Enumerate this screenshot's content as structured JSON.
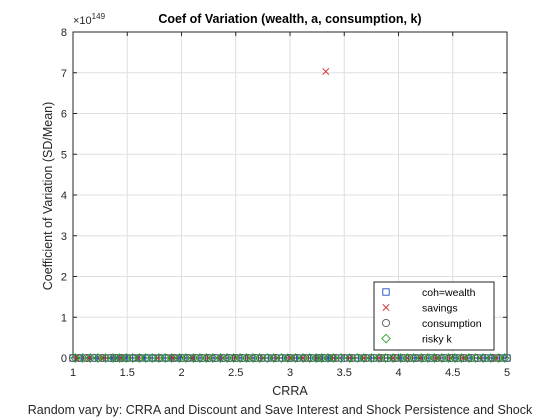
{
  "chart_data": {
    "type": "scatter",
    "title": "Coef of Variation (wealth, a, consumption, k)",
    "xlabel": "CRRA",
    "ylabel": "Coefficient of Variation (SD/Mean)",
    "caption": "Random vary by: CRRA and Discount and Save Interest and Shock Persistence and Shock",
    "xlim": [
      1,
      5
    ],
    "ylim": [
      0,
      8
    ],
    "y_multiplier": "×10",
    "y_multiplier_exponent": "149",
    "x_ticks": [
      "1",
      "1.5",
      "2",
      "2.5",
      "3",
      "3.5",
      "4",
      "4.5",
      "5"
    ],
    "y_ticks": [
      "0",
      "1",
      "2",
      "3",
      "4",
      "5",
      "6",
      "7",
      "8"
    ],
    "grid": true,
    "legend_position": "bottom-right",
    "colors": {
      "coh=wealth": "#1f4fbf",
      "savings": "#d62728",
      "consumption": "#555555",
      "risky k": "#2ca02c"
    },
    "series": [
      {
        "name": "coh=wealth",
        "marker": "square",
        "color": "#1f4fbf",
        "x": [
          1.0,
          1.05,
          1.12,
          1.18,
          1.25,
          1.33,
          1.38,
          1.42,
          1.47,
          1.52,
          1.58,
          1.63,
          1.7,
          1.76,
          1.82,
          1.88,
          1.95,
          2.02,
          2.08,
          2.15,
          2.21,
          2.27,
          2.33,
          2.4,
          2.46,
          2.52,
          2.58,
          2.64,
          2.7,
          2.77,
          2.83,
          2.9,
          2.96,
          3.03,
          3.1,
          3.16,
          3.22,
          3.27,
          3.33,
          3.38,
          3.45,
          3.53,
          3.6,
          3.66,
          3.72,
          3.8,
          3.87,
          3.93,
          3.99,
          4.06,
          4.12,
          4.19,
          4.25,
          4.31,
          4.38,
          4.44,
          4.5,
          4.57,
          4.63,
          4.7,
          4.76,
          4.83,
          4.9,
          4.96,
          5.0
        ],
        "y": [
          0,
          0,
          0,
          0,
          0,
          0,
          0,
          0,
          0,
          0,
          0,
          0,
          0,
          0,
          0,
          0,
          0,
          0,
          0,
          0,
          0,
          0,
          0,
          0,
          0,
          0,
          0,
          0,
          0,
          0,
          0,
          0,
          0,
          0,
          0,
          0,
          0,
          0,
          0,
          0,
          0,
          0,
          0,
          0,
          0,
          0,
          0,
          0,
          0,
          0,
          0,
          0,
          0,
          0,
          0,
          0,
          0,
          0,
          0,
          0,
          0,
          0,
          0,
          0,
          0
        ]
      },
      {
        "name": "savings",
        "marker": "x",
        "color": "#d62728",
        "x": [
          1.03,
          1.15,
          1.28,
          1.44,
          1.6,
          1.78,
          1.92,
          2.1,
          2.25,
          2.38,
          2.5,
          2.62,
          2.75,
          2.88,
          3.0,
          3.12,
          3.25,
          3.33,
          3.4,
          3.55,
          3.68,
          3.82,
          3.95,
          4.08,
          4.2,
          4.35,
          4.48,
          4.6,
          4.75,
          4.9
        ],
        "y": [
          0,
          0,
          0,
          0,
          0,
          0,
          0,
          0,
          0,
          0,
          0,
          0,
          0,
          0,
          0,
          0,
          0,
          7.03,
          0,
          0,
          0,
          0,
          0,
          0,
          0,
          0,
          0,
          0,
          0,
          0
        ]
      },
      {
        "name": "consumption",
        "marker": "circle",
        "color": "#555555",
        "x": [
          1.0,
          1.06,
          1.13,
          1.2,
          1.27,
          1.35,
          1.4,
          1.45,
          1.5,
          1.56,
          1.62,
          1.68,
          1.74,
          1.8,
          1.86,
          1.93,
          2.0,
          2.06,
          2.13,
          2.19,
          2.25,
          2.31,
          2.38,
          2.44,
          2.5,
          2.56,
          2.62,
          2.68,
          2.74,
          2.8,
          2.87,
          2.93,
          3.0,
          3.07,
          3.14,
          3.2,
          3.26,
          3.31,
          3.36,
          3.42,
          3.5,
          3.57,
          3.63,
          3.7,
          3.77,
          3.84,
          3.9,
          3.97,
          4.04,
          4.1,
          4.16,
          4.23,
          4.29,
          4.35,
          4.42,
          4.48,
          4.54,
          4.6,
          4.67,
          4.73,
          4.8,
          4.87,
          4.93,
          5.0
        ],
        "y": [
          0,
          0,
          0,
          0,
          0,
          0,
          0,
          0,
          0,
          0,
          0,
          0,
          0,
          0,
          0,
          0,
          0,
          0,
          0,
          0,
          0,
          0,
          0,
          0,
          0,
          0,
          0,
          0,
          0,
          0,
          0,
          0,
          0,
          0,
          0,
          0,
          0,
          0,
          0,
          0,
          0,
          0,
          0,
          0,
          0,
          0,
          0,
          0,
          0,
          0,
          0,
          0,
          0,
          0,
          0,
          0,
          0,
          0,
          0,
          0,
          0,
          0,
          0,
          0
        ]
      },
      {
        "name": "risky k",
        "marker": "diamond",
        "color": "#2ca02c",
        "x": [
          1.02,
          1.09,
          1.16,
          1.23,
          1.3,
          1.37,
          1.43,
          1.49,
          1.55,
          1.61,
          1.67,
          1.73,
          1.79,
          1.85,
          1.91,
          1.98,
          2.04,
          2.11,
          2.17,
          2.23,
          2.29,
          2.36,
          2.42,
          2.48,
          2.54,
          2.6,
          2.66,
          2.72,
          2.79,
          2.85,
          2.92,
          2.98,
          3.05,
          3.12,
          3.18,
          3.24,
          3.29,
          3.35,
          3.4,
          3.47,
          3.55,
          3.62,
          3.68,
          3.75,
          3.82,
          3.88,
          3.95,
          4.02,
          4.08,
          4.14,
          4.21,
          4.27,
          4.33,
          4.4,
          4.46,
          4.52,
          4.58,
          4.65,
          4.71,
          4.78,
          4.85,
          4.92,
          4.98
        ],
        "y": [
          0,
          0,
          0,
          0,
          0,
          0,
          0,
          0,
          0,
          0,
          0,
          0,
          0,
          0,
          0,
          0,
          0,
          0,
          0,
          0,
          0,
          0,
          0,
          0,
          0,
          0,
          0,
          0,
          0,
          0,
          0,
          0,
          0,
          0,
          0,
          0,
          0,
          0,
          0,
          0,
          0,
          0,
          0,
          0,
          0,
          0,
          0,
          0,
          0,
          0,
          0,
          0,
          0,
          0,
          0,
          0,
          0,
          0,
          0,
          0,
          0,
          0,
          0
        ]
      }
    ]
  }
}
